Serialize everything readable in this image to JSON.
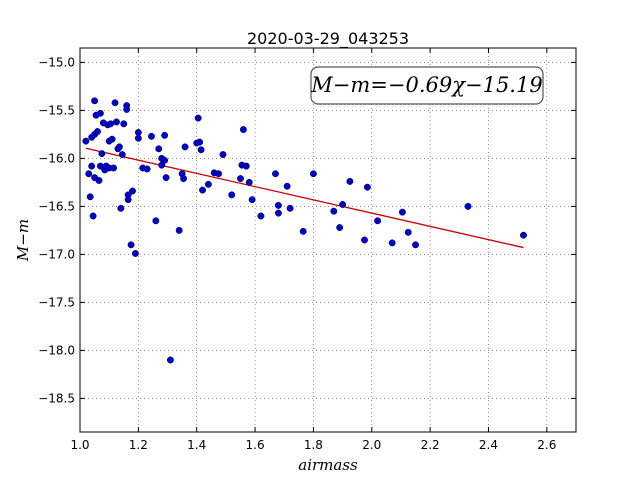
{
  "chart_data": {
    "type": "scatter",
    "title": "2020-03-29_043253",
    "xlabel": "airmass",
    "ylabel": "M−m",
    "xlim": [
      1.0,
      2.7
    ],
    "ylim": [
      -18.85,
      -14.85
    ],
    "y_inverted": true,
    "grid": true,
    "x_ticks": [
      1.0,
      1.2,
      1.4,
      1.6,
      1.8,
      2.0,
      2.2,
      2.4,
      2.6
    ],
    "x_tick_labels": [
      "1.0",
      "1.2",
      "1.4",
      "1.6",
      "1.8",
      "2.0",
      "2.2",
      "2.4",
      "2.6"
    ],
    "y_ticks": [
      -15.0,
      -15.5,
      -16.0,
      -16.5,
      -17.0,
      -17.5,
      -18.0,
      -18.5
    ],
    "y_tick_labels": [
      "−15.0",
      "−15.5",
      "−16.0",
      "−16.5",
      "−17.0",
      "−17.5",
      "−18.0",
      "−18.5"
    ],
    "annotation": "M−m=−0.69χ−15.19",
    "annotation_position": "top-right",
    "colors": {
      "points": "#0000cc",
      "fit": "#cc0000"
    },
    "series": [
      {
        "points": [
          [
            1.02,
            -15.82
          ],
          [
            1.03,
            -16.16
          ],
          [
            1.035,
            -16.4
          ],
          [
            1.04,
            -16.08
          ],
          [
            1.04,
            -15.78
          ],
          [
            1.045,
            -16.6
          ],
          [
            1.05,
            -15.4
          ],
          [
            1.05,
            -15.75
          ],
          [
            1.05,
            -16.2
          ],
          [
            1.055,
            -15.55
          ],
          [
            1.06,
            -15.72
          ],
          [
            1.065,
            -16.23
          ],
          [
            1.07,
            -15.53
          ],
          [
            1.07,
            -16.08
          ],
          [
            1.075,
            -15.95
          ],
          [
            1.08,
            -15.63
          ],
          [
            1.085,
            -16.12
          ],
          [
            1.09,
            -16.08
          ],
          [
            1.095,
            -15.65
          ],
          [
            1.1,
            -15.82
          ],
          [
            1.1,
            -16.1
          ],
          [
            1.105,
            -15.64
          ],
          [
            1.11,
            -15.8
          ],
          [
            1.115,
            -16.1
          ],
          [
            1.12,
            -15.42
          ],
          [
            1.125,
            -15.62
          ],
          [
            1.13,
            -15.9
          ],
          [
            1.135,
            -15.88
          ],
          [
            1.14,
            -16.52
          ],
          [
            1.145,
            -15.96
          ],
          [
            1.15,
            -15.64
          ],
          [
            1.16,
            -15.45
          ],
          [
            1.16,
            -15.49
          ],
          [
            1.165,
            -16.38
          ],
          [
            1.165,
            -16.43
          ],
          [
            1.175,
            -16.9
          ],
          [
            1.18,
            -16.34
          ],
          [
            1.19,
            -16.99
          ],
          [
            1.2,
            -15.73
          ],
          [
            1.2,
            -15.79
          ],
          [
            1.215,
            -16.1
          ],
          [
            1.23,
            -16.11
          ],
          [
            1.245,
            -15.77
          ],
          [
            1.26,
            -16.65
          ],
          [
            1.27,
            -15.9
          ],
          [
            1.28,
            -16.0
          ],
          [
            1.28,
            -16.07
          ],
          [
            1.29,
            -15.76
          ],
          [
            1.29,
            -16.02
          ],
          [
            1.295,
            -16.2
          ],
          [
            1.31,
            -18.1
          ],
          [
            1.34,
            -16.75
          ],
          [
            1.35,
            -16.16
          ],
          [
            1.355,
            -16.21
          ],
          [
            1.36,
            -15.88
          ],
          [
            1.4,
            -15.84
          ],
          [
            1.405,
            -15.58
          ],
          [
            1.41,
            -15.83
          ],
          [
            1.415,
            -15.91
          ],
          [
            1.42,
            -16.33
          ],
          [
            1.44,
            -16.27
          ],
          [
            1.46,
            -16.15
          ],
          [
            1.475,
            -16.16
          ],
          [
            1.49,
            -15.96
          ],
          [
            1.52,
            -16.38
          ],
          [
            1.55,
            -16.21
          ],
          [
            1.555,
            -16.07
          ],
          [
            1.56,
            -15.7
          ],
          [
            1.57,
            -16.08
          ],
          [
            1.58,
            -16.25
          ],
          [
            1.59,
            -16.43
          ],
          [
            1.62,
            -16.6
          ],
          [
            1.67,
            -16.16
          ],
          [
            1.68,
            -16.49
          ],
          [
            1.68,
            -16.57
          ],
          [
            1.71,
            -16.29
          ],
          [
            1.72,
            -16.52
          ],
          [
            1.765,
            -16.76
          ],
          [
            1.8,
            -16.16
          ],
          [
            1.87,
            -16.55
          ],
          [
            1.89,
            -16.72
          ],
          [
            1.9,
            -16.48
          ],
          [
            1.925,
            -16.24
          ],
          [
            1.975,
            -16.85
          ],
          [
            1.985,
            -16.3
          ],
          [
            2.02,
            -16.65
          ],
          [
            2.07,
            -16.88
          ],
          [
            2.105,
            -16.56
          ],
          [
            2.125,
            -16.77
          ],
          [
            2.15,
            -16.9
          ],
          [
            2.33,
            -16.5
          ],
          [
            2.52,
            -16.8
          ]
        ]
      }
    ],
    "fit_line": {
      "slope": -0.69,
      "intercept": -15.19,
      "x_range": [
        1.02,
        2.52
      ]
    }
  }
}
